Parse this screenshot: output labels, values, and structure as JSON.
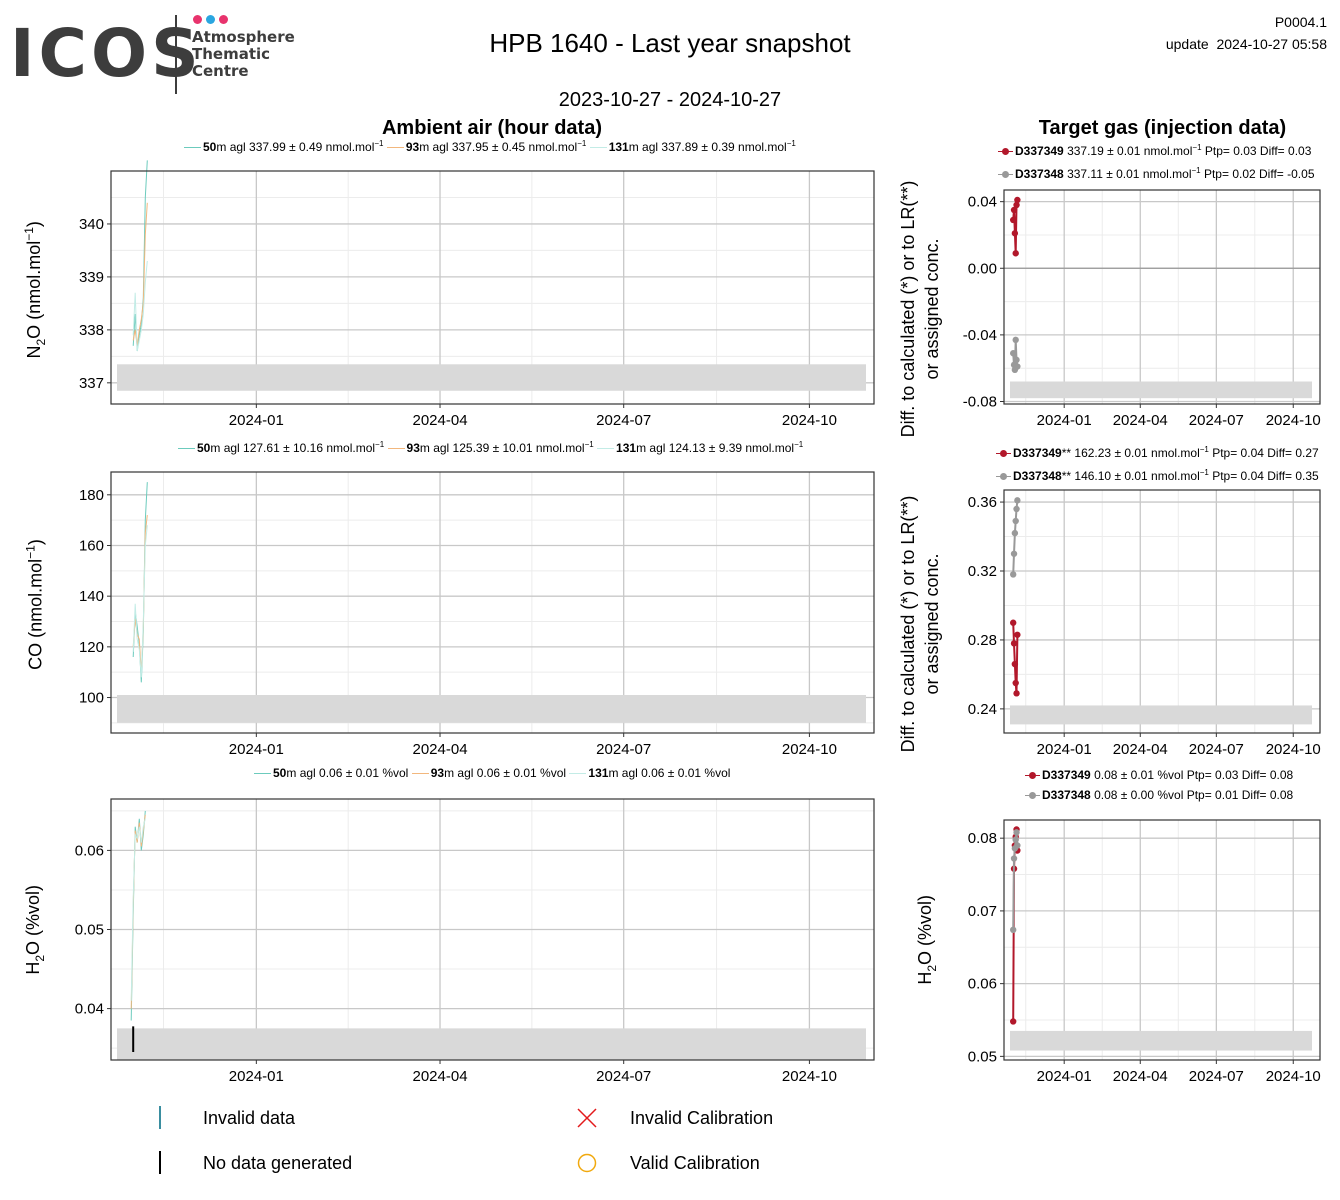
{
  "header": {
    "logo_text": "ICOS",
    "logo_sub_1": "Atmosphere",
    "logo_sub_2": "Thematic",
    "logo_sub_3": "Centre",
    "logo_dot_colors": [
      "#e8336d",
      "#2aa6e0",
      "#e8336d"
    ],
    "title": "HPB 1640 - Last year snapshot",
    "date_range": "2023-10-27 - 2024-10-27",
    "code": "P0004.1",
    "update": "update  2024-10-27 05:58"
  },
  "sections": {
    "ambient_title": "Ambient air (hour data)",
    "target_title": "Target gas (injection data)"
  },
  "colors": {
    "h50": "#6ccbbd",
    "h93": "#f2b77d",
    "h131": "#c3ece6",
    "tgt1": "#b2182b",
    "tgt2": "#999999",
    "band": "#d9d9d9",
    "frame": "#333333",
    "major_grid": "#c8c8c8",
    "minor_grid": "#ececec"
  },
  "legends": {
    "n2o": [
      {
        "height": "50",
        "text": "m agl 337.99 ± 0.49 nmol.mol",
        "sup": "−1"
      },
      {
        "height": "93",
        "text": "m agl 337.95 ± 0.45 nmol.mol",
        "sup": "−1"
      },
      {
        "height": "131",
        "text": "m agl 337.89 ± 0.39 nmol.mol",
        "sup": "−1"
      }
    ],
    "co": [
      {
        "height": "50",
        "text": "m agl 127.61 ± 10.16 nmol.mol",
        "sup": "−1"
      },
      {
        "height": "93",
        "text": "m agl 125.39 ± 10.01 nmol.mol",
        "sup": "−1"
      },
      {
        "height": "131",
        "text": "m agl 124.13 ± 9.39 nmol.mol",
        "sup": "−1"
      }
    ],
    "h2o": [
      {
        "height": "50",
        "text": "m agl 0.06 ± 0.01 %vol"
      },
      {
        "height": "93",
        "text": "m agl 0.06 ± 0.01 %vol"
      },
      {
        "height": "131",
        "text": "m agl 0.06 ± 0.01 %vol"
      }
    ],
    "tgt_n2o": [
      {
        "id": "D337349",
        "text": "337.19 ± 0.01 nmol.mol",
        "sup": "−1",
        "tail": "Ptp= 0.03 Diff= 0.03"
      },
      {
        "id": "D337348",
        "text": "337.11 ± 0.01 nmol.mol",
        "sup": "−1",
        "tail": "Ptp= 0.02 Diff= -0.05"
      }
    ],
    "tgt_co": [
      {
        "id": "D337349",
        "mark": "**",
        "text": "162.23 ± 0.01 nmol.mol",
        "sup": "−1",
        "tail": "Ptp= 0.04 Diff= 0.27"
      },
      {
        "id": "D337348",
        "mark": "**",
        "text": "146.10 ± 0.01 nmol.mol",
        "sup": "−1",
        "tail": "Ptp= 0.04 Diff= 0.35"
      }
    ],
    "tgt_h2o": [
      {
        "id": "D337349",
        "text": "0.08 ± 0.01 %vol Ptp= 0.03 Diff= 0.08"
      },
      {
        "id": "D337348",
        "text": "0.08 ± 0.00 %vol Ptp= 0.01 Diff= 0.08"
      }
    ]
  },
  "ylabels": {
    "n2o_a": "N",
    "n2o_b": "2",
    "n2o_c": "O (nmol.mol",
    "n2o_d": "−1",
    "n2o_e": ")",
    "co_a": "CO (nmol.mol",
    "co_b": "−1",
    "co_c": ")",
    "h2o_a": "H",
    "h2o_b": "2",
    "h2o_c": "O (%vol)",
    "diff_1": "Diff. to calculated (*) or to LR(**)",
    "diff_2": "or assigned conc."
  },
  "bottom_legend": {
    "invalid_data": "Invalid data",
    "no_data": "No data generated",
    "invalid_cal": "Invalid Calibration",
    "valid_cal": "Valid Calibration",
    "invalid_data_color": "#3a8ea0",
    "no_data_color": "#000000",
    "invalid_cal_color": "#e31a1c",
    "valid_cal_color": "#f1a90e"
  },
  "chart_data": [
    {
      "id": "ambient_n2o",
      "type": "line",
      "x_range": [
        "2023-10-27",
        "2024-10-27"
      ],
      "x_ticks": [
        "2024-01",
        "2024-04",
        "2024-07",
        "2024-10"
      ],
      "ylim": [
        336.6,
        341.0
      ],
      "y_ticks": [
        337,
        338,
        339,
        340
      ],
      "y_tick_labels": [
        "337",
        "338",
        "339",
        "340"
      ],
      "band": [
        336.85,
        337.35
      ],
      "series": [
        {
          "name": "50m agl",
          "color_key": "h50",
          "x": [
            "2023-11-01",
            "2023-11-02",
            "2023-11-03",
            "2023-11-04",
            "2023-11-05",
            "2023-11-06",
            "2023-11-07",
            "2023-11-08"
          ],
          "y": [
            337.7,
            338.3,
            337.6,
            337.9,
            338.1,
            338.6,
            340.5,
            341.2
          ]
        },
        {
          "name": "93m agl",
          "color_key": "h93",
          "x": [
            "2023-11-01",
            "2023-11-02",
            "2023-11-03",
            "2023-11-04",
            "2023-11-05",
            "2023-11-06",
            "2023-11-07",
            "2023-11-08"
          ],
          "y": [
            337.8,
            338.0,
            337.7,
            338.0,
            338.2,
            338.5,
            339.8,
            340.4
          ]
        },
        {
          "name": "131m agl",
          "color_key": "h131",
          "x": [
            "2023-11-01",
            "2023-11-02",
            "2023-11-03",
            "2023-11-04",
            "2023-11-05",
            "2023-11-06",
            "2023-11-07",
            "2023-11-08"
          ],
          "y": [
            337.9,
            338.7,
            337.6,
            337.8,
            338.0,
            338.3,
            338.9,
            339.3
          ]
        }
      ]
    },
    {
      "id": "ambient_co",
      "type": "line",
      "x_range": [
        "2023-10-27",
        "2024-10-27"
      ],
      "x_ticks": [
        "2024-01",
        "2024-04",
        "2024-07",
        "2024-10"
      ],
      "ylim": [
        86,
        189
      ],
      "y_ticks": [
        100,
        120,
        140,
        160,
        180
      ],
      "y_tick_labels": [
        "100",
        "120",
        "140",
        "160",
        "180"
      ],
      "band": [
        90,
        101
      ],
      "series": [
        {
          "name": "50m agl",
          "color_key": "h50",
          "x": [
            "2023-11-01",
            "2023-11-02",
            "2023-11-03",
            "2023-11-04",
            "2023-11-05",
            "2023-11-06",
            "2023-11-07",
            "2023-11-08"
          ],
          "y": [
            116,
            134,
            128,
            121,
            106,
            126,
            170,
            185
          ]
        },
        {
          "name": "93m agl",
          "color_key": "h93",
          "x": [
            "2023-11-01",
            "2023-11-02",
            "2023-11-03",
            "2023-11-04",
            "2023-11-05",
            "2023-11-06",
            "2023-11-07",
            "2023-11-08"
          ],
          "y": [
            120,
            131,
            125,
            123,
            110,
            128,
            165,
            172
          ]
        },
        {
          "name": "131m agl",
          "color_key": "h131",
          "x": [
            "2023-11-01",
            "2023-11-02",
            "2023-11-03",
            "2023-11-04",
            "2023-11-05",
            "2023-11-06",
            "2023-11-07",
            "2023-11-08"
          ],
          "y": [
            118,
            137,
            123,
            119,
            108,
            130,
            160,
            168
          ]
        }
      ]
    },
    {
      "id": "ambient_h2o",
      "type": "line",
      "x_range": [
        "2023-10-27",
        "2024-10-27"
      ],
      "x_ticks": [
        "2024-01",
        "2024-04",
        "2024-07",
        "2024-10"
      ],
      "ylim": [
        0.0335,
        0.0665
      ],
      "y_ticks": [
        0.04,
        0.05,
        0.06
      ],
      "y_tick_labels": [
        "0.04",
        "0.05",
        "0.06"
      ],
      "band": [
        0.0335,
        0.0375
      ],
      "no_data_marker_x": "2023-11-01",
      "series": [
        {
          "name": "50m agl",
          "color_key": "h50",
          "x": [
            "2023-10-31",
            "2023-11-01",
            "2023-11-02",
            "2023-11-03",
            "2023-11-04",
            "2023-11-05",
            "2023-11-06",
            "2023-11-07"
          ],
          "y": [
            0.0385,
            0.052,
            0.063,
            0.061,
            0.064,
            0.06,
            0.062,
            0.065
          ]
        },
        {
          "name": "93m agl",
          "color_key": "h93",
          "x": [
            "2023-10-31",
            "2023-11-01",
            "2023-11-02",
            "2023-11-03",
            "2023-11-04",
            "2023-11-05",
            "2023-11-06",
            "2023-11-07"
          ],
          "y": [
            0.04,
            0.053,
            0.0625,
            0.061,
            0.0635,
            0.0605,
            0.0625,
            0.0645
          ]
        },
        {
          "name": "131m agl",
          "color_key": "h131",
          "x": [
            "2023-10-31",
            "2023-11-01",
            "2023-11-02",
            "2023-11-03",
            "2023-11-04",
            "2023-11-05",
            "2023-11-06",
            "2023-11-07"
          ],
          "y": [
            0.041,
            0.054,
            0.062,
            0.0615,
            0.063,
            0.061,
            0.063,
            0.064
          ]
        }
      ]
    },
    {
      "id": "target_n2o",
      "type": "line",
      "x_range": [
        "2023-10-27",
        "2024-10-27"
      ],
      "x_ticks": [
        "2024-01",
        "2024-04",
        "2024-07",
        "2024-10"
      ],
      "ylim": [
        -0.0815,
        0.047
      ],
      "y_ticks": [
        -0.08,
        -0.04,
        0.0,
        0.04
      ],
      "y_tick_labels": [
        "-0.08",
        "-0.04",
        "0.00",
        "0.04"
      ],
      "band": [
        -0.078,
        -0.068
      ],
      "zero_line": true,
      "series": [
        {
          "name": "D337349",
          "color_key": "tgt1",
          "x": [
            "2023-11-01",
            "2023-11-02",
            "2023-11-03",
            "2023-11-04",
            "2023-11-05",
            "2023-11-06"
          ],
          "y": [
            0.029,
            0.035,
            0.021,
            0.009,
            0.038,
            0.041
          ]
        },
        {
          "name": "D337348",
          "color_key": "tgt2",
          "x": [
            "2023-11-01",
            "2023-11-02",
            "2023-11-03",
            "2023-11-04",
            "2023-11-05",
            "2023-11-06"
          ],
          "y": [
            -0.051,
            -0.058,
            -0.061,
            -0.043,
            -0.055,
            -0.059
          ]
        }
      ]
    },
    {
      "id": "target_co",
      "type": "line",
      "x_range": [
        "2023-10-27",
        "2024-10-27"
      ],
      "x_ticks": [
        "2024-01",
        "2024-04",
        "2024-07",
        "2024-10"
      ],
      "ylim": [
        0.226,
        0.367
      ],
      "y_ticks": [
        0.24,
        0.28,
        0.32,
        0.36
      ],
      "y_tick_labels": [
        "0.24",
        "0.28",
        "0.32",
        "0.36"
      ],
      "band": [
        0.231,
        0.242
      ],
      "series": [
        {
          "name": "D337349",
          "color_key": "tgt1",
          "x": [
            "2023-11-01",
            "2023-11-02",
            "2023-11-03",
            "2023-11-04",
            "2023-11-05",
            "2023-11-06"
          ],
          "y": [
            0.29,
            0.278,
            0.266,
            0.255,
            0.249,
            0.283
          ]
        },
        {
          "name": "D337348",
          "color_key": "tgt2",
          "x": [
            "2023-11-01",
            "2023-11-02",
            "2023-11-03",
            "2023-11-04",
            "2023-11-05",
            "2023-11-06"
          ],
          "y": [
            0.318,
            0.33,
            0.342,
            0.349,
            0.356,
            0.361
          ]
        }
      ]
    },
    {
      "id": "target_h2o",
      "type": "line",
      "x_range": [
        "2023-10-27",
        "2024-10-27"
      ],
      "x_ticks": [
        "2024-01",
        "2024-04",
        "2024-07",
        "2024-10"
      ],
      "ylim": [
        0.0495,
        0.0825
      ],
      "y_ticks": [
        0.05,
        0.06,
        0.07,
        0.08
      ],
      "y_tick_labels": [
        "0.05",
        "0.06",
        "0.07",
        "0.08"
      ],
      "band": [
        0.0508,
        0.0535
      ],
      "series": [
        {
          "name": "D337349",
          "color_key": "tgt1",
          "x": [
            "2023-11-01",
            "2023-11-02",
            "2023-11-03",
            "2023-11-04",
            "2023-11-05",
            "2023-11-06"
          ],
          "y": [
            0.0548,
            0.0758,
            0.079,
            0.0802,
            0.0812,
            0.0783
          ]
        },
        {
          "name": "D337348",
          "color_key": "tgt2",
          "x": [
            "2023-11-01",
            "2023-11-02",
            "2023-11-03",
            "2023-11-04",
            "2023-11-05",
            "2023-11-06"
          ],
          "y": [
            0.0674,
            0.0772,
            0.0786,
            0.0798,
            0.0808,
            0.079
          ]
        }
      ]
    }
  ]
}
